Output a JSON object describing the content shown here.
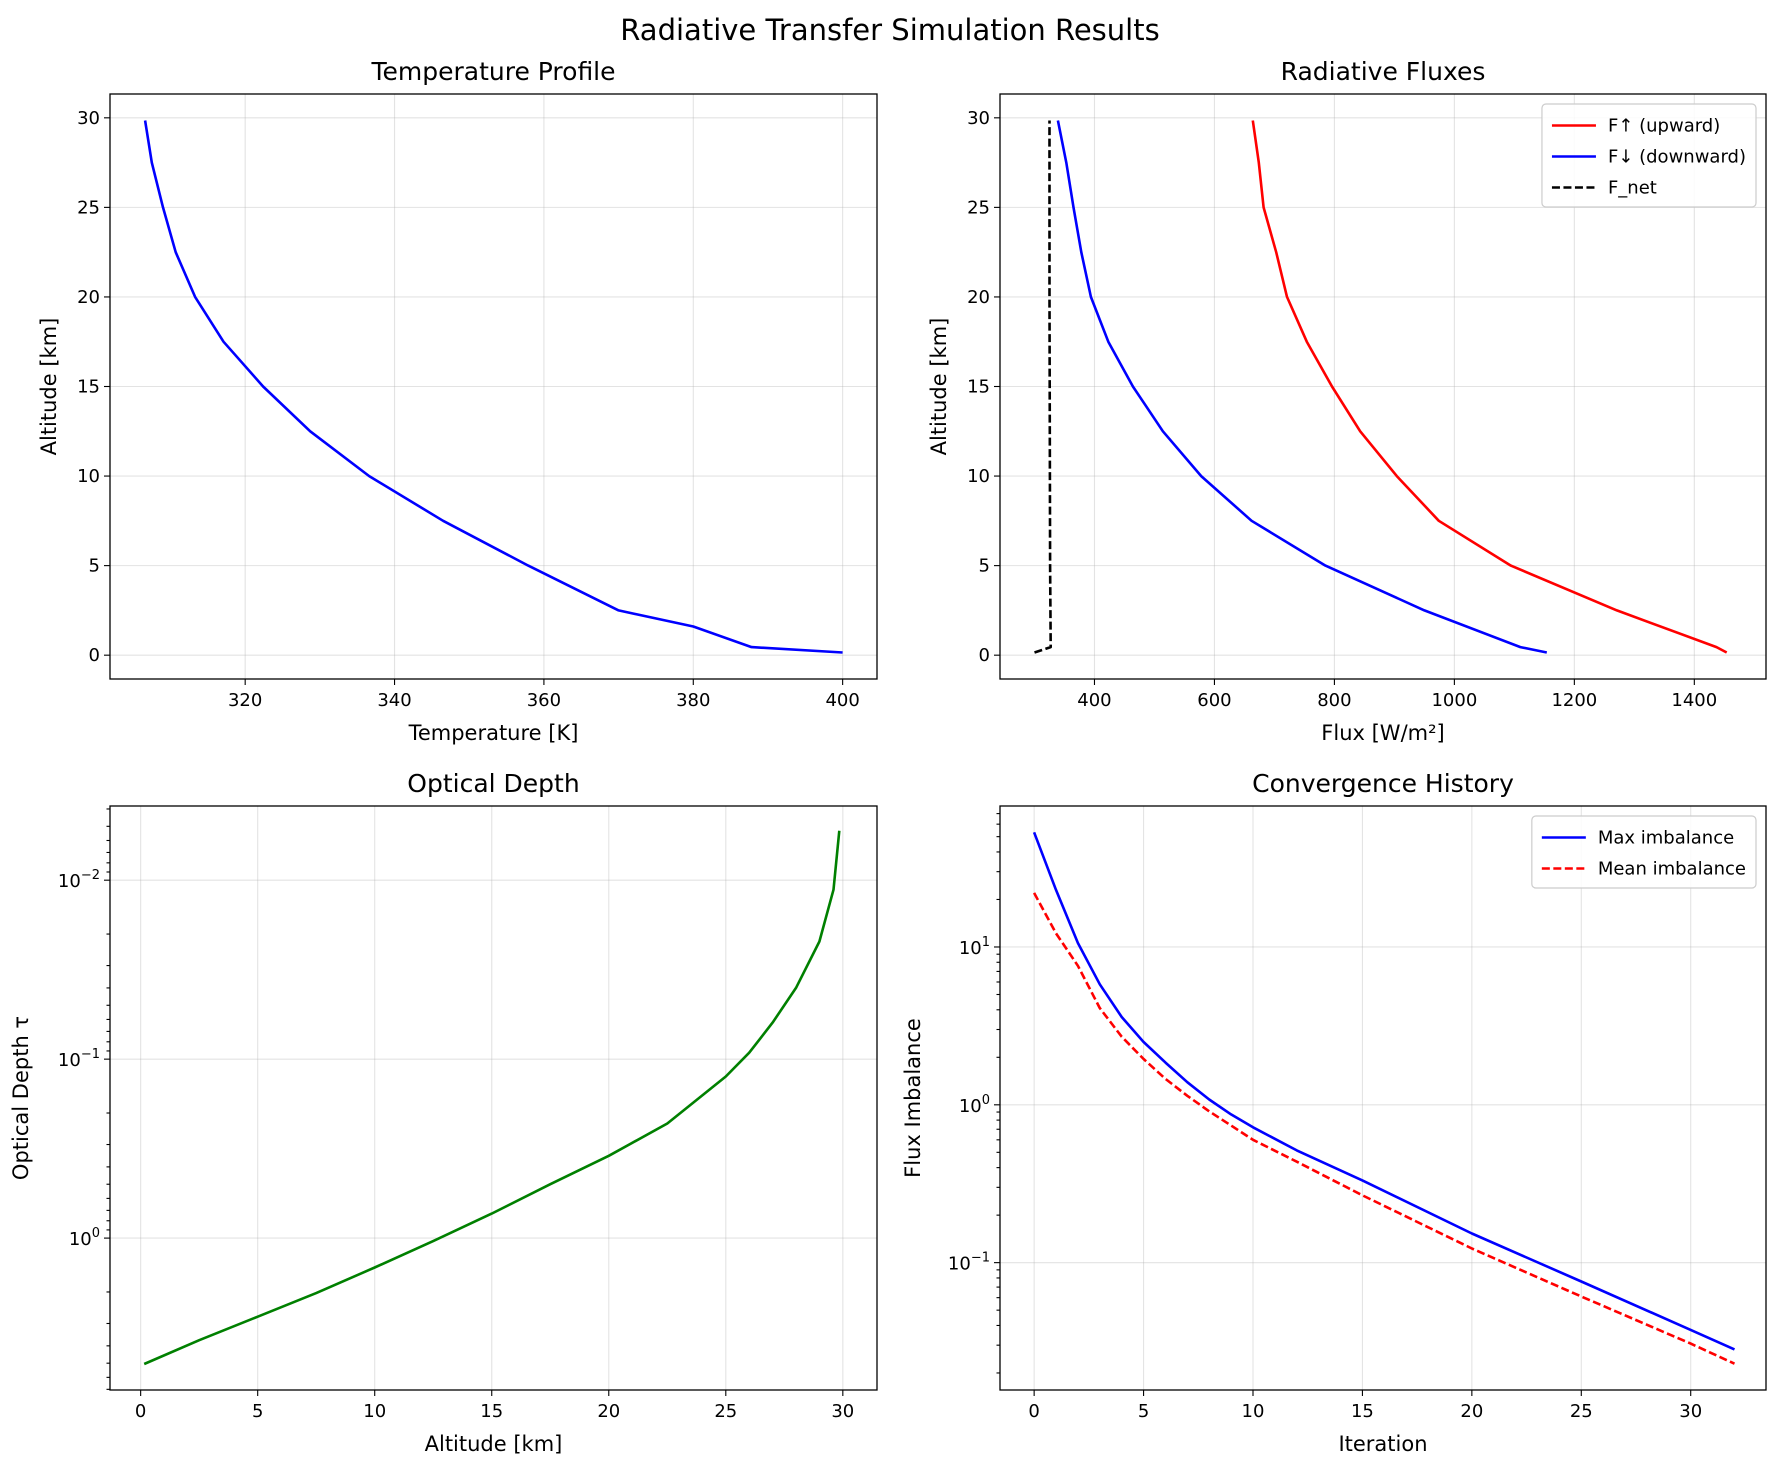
{
  "suptitle": "Radiative Transfer Simulation Results",
  "chart_data": [
    {
      "type": "line",
      "title": "Temperature Profile",
      "xlabel": "Temperature [K]",
      "ylabel": "Altitude [km]",
      "xscale": "linear",
      "yscale": "linear",
      "xlim": [
        301.9,
        404.6
      ],
      "ylim": [
        -1.33,
        31.33
      ],
      "grid": true,
      "xticks": [
        {
          "value": 320,
          "label": "320"
        },
        {
          "value": 340,
          "label": "340"
        },
        {
          "value": 360,
          "label": "360"
        },
        {
          "value": 380,
          "label": "380"
        },
        {
          "value": 400,
          "label": "400"
        }
      ],
      "yticks": [
        {
          "value": 0,
          "label": "0"
        },
        {
          "value": 5,
          "label": "5"
        },
        {
          "value": 10,
          "label": "10"
        },
        {
          "value": 15,
          "label": "15"
        },
        {
          "value": 20,
          "label": "20"
        },
        {
          "value": 25,
          "label": "25"
        },
        {
          "value": 30,
          "label": "30"
        }
      ],
      "series": [
        {
          "color": "#0000ff",
          "style": "solid",
          "x": [
            400.0,
            387.8,
            380.0,
            370.0,
            357.9,
            346.5,
            336.6,
            328.7,
            322.4,
            317.1,
            313.3,
            310.7,
            309.0,
            307.5,
            306.6
          ],
          "y": [
            0.15,
            0.45,
            1.6,
            2.5,
            5,
            7.5,
            10,
            12.5,
            15,
            17.5,
            20,
            22.5,
            25,
            27.5,
            29.85
          ]
        }
      ]
    },
    {
      "type": "line",
      "title": "Radiative Fluxes",
      "xlabel": "Flux [W/m²]",
      "ylabel": "Altitude [km]",
      "xscale": "linear",
      "yscale": "linear",
      "xlim": [
        242.5,
        1519.5
      ],
      "ylim": [
        -1.33,
        31.33
      ],
      "grid": true,
      "legend": "top-right",
      "xticks": [
        {
          "value": 400,
          "label": "400"
        },
        {
          "value": 600,
          "label": "600"
        },
        {
          "value": 800,
          "label": "800"
        },
        {
          "value": 1000,
          "label": "1000"
        },
        {
          "value": 1200,
          "label": "1200"
        },
        {
          "value": 1400,
          "label": "1400"
        }
      ],
      "yticks": [
        {
          "value": 0,
          "label": "0"
        },
        {
          "value": 5,
          "label": "5"
        },
        {
          "value": 10,
          "label": "10"
        },
        {
          "value": 15,
          "label": "15"
        },
        {
          "value": 20,
          "label": "20"
        },
        {
          "value": 25,
          "label": "25"
        },
        {
          "value": 30,
          "label": "30"
        }
      ],
      "series": [
        {
          "name": "F↑ (upward)",
          "color": "#ff0000",
          "style": "solid",
          "x": [
            1454,
            1437,
            1271,
            1094,
            974,
            904,
            843,
            796,
            754,
            721,
            703,
            682,
            674,
            664
          ],
          "y": [
            0.15,
            0.45,
            2.5,
            5,
            7.5,
            10,
            12.5,
            15,
            17.5,
            20,
            22.5,
            25,
            27.5,
            29.85
          ]
        },
        {
          "name": "F↓ (downward)",
          "color": "#0000ff",
          "style": "solid",
          "x": [
            1154,
            1110,
            950,
            785,
            662,
            578,
            514,
            464,
            423,
            394,
            378,
            365,
            353,
            339
          ],
          "y": [
            0.15,
            0.45,
            2.5,
            5,
            7.5,
            10,
            12.5,
            15,
            17.5,
            20,
            22.5,
            25,
            27.5,
            29.85
          ]
        },
        {
          "name": "F_net",
          "color": "#000000",
          "style": "dashed",
          "x": [
            300,
            327,
            326,
            325,
            325
          ],
          "y": [
            0.15,
            0.45,
            5,
            20,
            29.85
          ]
        }
      ]
    },
    {
      "type": "line",
      "title": "Optical Depth",
      "xlabel": "Altitude [km]",
      "ylabel": "Optical Depth τ",
      "xscale": "linear",
      "yscale": "log",
      "yinverted": true,
      "xlim": [
        -1.31,
        31.46
      ],
      "ylim": [
        7.06,
        0.00385
      ],
      "grid": true,
      "xticks": [
        {
          "value": 0,
          "label": "0"
        },
        {
          "value": 5,
          "label": "5"
        },
        {
          "value": 10,
          "label": "10"
        },
        {
          "value": 15,
          "label": "15"
        },
        {
          "value": 20,
          "label": "20"
        },
        {
          "value": 25,
          "label": "25"
        },
        {
          "value": 30,
          "label": "30"
        }
      ],
      "yticks": [
        {
          "value": 0.01,
          "label": "10",
          "exp": "−2"
        },
        {
          "value": 0.1,
          "label": "10",
          "exp": "−1"
        },
        {
          "value": 1,
          "label": "10",
          "exp": "0"
        }
      ],
      "series": [
        {
          "color": "#008000",
          "style": "solid",
          "x": [
            0.15,
            2.5,
            5,
            7.5,
            10,
            12.5,
            15,
            17.5,
            20,
            22.5,
            25,
            26,
            27,
            28,
            29,
            29.6,
            29.85
          ],
          "y": [
            5.05,
            3.72,
            2.75,
            2.03,
            1.46,
            1.04,
            0.73,
            0.5,
            0.347,
            0.229,
            0.125,
            0.092,
            0.0625,
            0.04,
            0.022,
            0.0113,
            0.0053
          ]
        }
      ]
    },
    {
      "type": "line",
      "title": "Convergence History",
      "xlabel": "Iteration",
      "ylabel": "Flux Imbalance",
      "xscale": "linear",
      "yscale": "log",
      "xlim": [
        -1.56,
        33.44
      ],
      "ylim": [
        0.0156,
        78.2
      ],
      "grid": true,
      "legend": "top-right",
      "xticks": [
        {
          "value": 0,
          "label": "0"
        },
        {
          "value": 5,
          "label": "5"
        },
        {
          "value": 10,
          "label": "10"
        },
        {
          "value": 15,
          "label": "15"
        },
        {
          "value": 20,
          "label": "20"
        },
        {
          "value": 25,
          "label": "25"
        },
        {
          "value": 30,
          "label": "30"
        }
      ],
      "yticks": [
        {
          "value": 0.1,
          "label": "10",
          "exp": "−1"
        },
        {
          "value": 1,
          "label": "10",
          "exp": "0"
        },
        {
          "value": 10,
          "label": "10",
          "exp": "1"
        }
      ],
      "series": [
        {
          "name": "Max imbalance",
          "color": "#0000ff",
          "style": "solid",
          "x": [
            0,
            1,
            2,
            3,
            4,
            5,
            6,
            7,
            8,
            9,
            10,
            12,
            15,
            20,
            25,
            30,
            32
          ],
          "y": [
            53.3,
            23,
            10.6,
            5.8,
            3.6,
            2.5,
            1.85,
            1.39,
            1.08,
            0.87,
            0.72,
            0.514,
            0.332,
            0.153,
            0.076,
            0.0375,
            0.0282
          ]
        },
        {
          "name": "Mean imbalance",
          "color": "#ff0000",
          "style": "dashed",
          "x": [
            0,
            1,
            2,
            3,
            4,
            5,
            6,
            7,
            8,
            10,
            12,
            15,
            20,
            25,
            30,
            32
          ],
          "y": [
            22,
            12.2,
            7.6,
            4.1,
            2.7,
            1.95,
            1.46,
            1.14,
            0.91,
            0.6,
            0.436,
            0.267,
            0.123,
            0.061,
            0.0307,
            0.0229
          ]
        }
      ]
    }
  ]
}
